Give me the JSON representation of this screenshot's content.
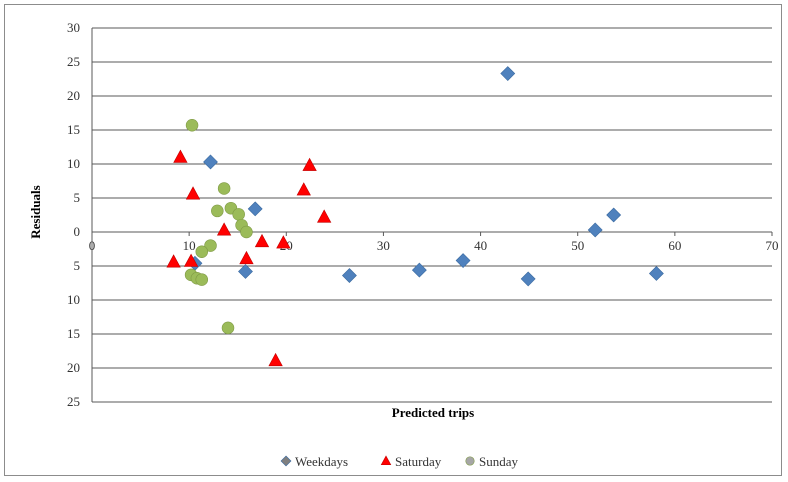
{
  "chart_data": {
    "type": "scatter",
    "title": "",
    "xlabel": "Predicted trips",
    "ylabel": "Residuals",
    "xlim": [
      0,
      70
    ],
    "ylim": [
      -25,
      30
    ],
    "x_ticks": [
      0,
      10,
      20,
      30,
      40,
      50,
      60,
      70
    ],
    "y_ticks": [
      30,
      25,
      20,
      15,
      10,
      5,
      0,
      -5,
      -10,
      -15,
      -20,
      -25
    ],
    "y_tick_labels": [
      "30",
      "25",
      "20",
      "15",
      "10",
      "5",
      "0",
      "5",
      "10",
      "15",
      "20",
      "25"
    ],
    "grid": "horizontal",
    "legend_position": "bottom",
    "series": [
      {
        "name": "Weekdays",
        "marker": "diamond",
        "color": "#4f81bd",
        "points": [
          [
            12.2,
            10.3
          ],
          [
            16.8,
            3.4
          ],
          [
            10.6,
            -4.6
          ],
          [
            15.8,
            -5.8
          ],
          [
            26.5,
            -6.4
          ],
          [
            33.7,
            -5.6
          ],
          [
            38.2,
            -4.2
          ],
          [
            42.8,
            23.3
          ],
          [
            44.9,
            -6.9
          ],
          [
            51.8,
            0.3
          ],
          [
            53.7,
            2.5
          ],
          [
            58.1,
            -6.1
          ]
        ]
      },
      {
        "name": "Saturday",
        "marker": "triangle",
        "color": "#ff0000",
        "points": [
          [
            9.1,
            11.0
          ],
          [
            10.4,
            5.6
          ],
          [
            8.4,
            -4.4
          ],
          [
            10.2,
            -4.3
          ],
          [
            13.6,
            0.3
          ],
          [
            15.9,
            -3.9
          ],
          [
            17.5,
            -1.4
          ],
          [
            19.7,
            -1.6
          ],
          [
            21.8,
            6.2
          ],
          [
            22.4,
            9.8
          ],
          [
            23.9,
            2.2
          ],
          [
            18.9,
            -18.9
          ]
        ]
      },
      {
        "name": "Sunday",
        "marker": "circle",
        "color": "#9bbb59",
        "points": [
          [
            10.3,
            15.7
          ],
          [
            13.6,
            6.4
          ],
          [
            12.9,
            3.1
          ],
          [
            14.3,
            3.5
          ],
          [
            15.1,
            2.6
          ],
          [
            15.4,
            1.0
          ],
          [
            15.9,
            0.0
          ],
          [
            12.2,
            -2.0
          ],
          [
            11.3,
            -2.9
          ],
          [
            10.2,
            -6.3
          ],
          [
            10.8,
            -6.8
          ],
          [
            11.3,
            -7.0
          ],
          [
            14.0,
            -14.1
          ]
        ]
      }
    ]
  },
  "colors": {
    "weekdays_legend_marker": "#7f7f7f",
    "saturday_legend_marker": "#ff0000",
    "sunday_legend_marker": "#a6a6a6",
    "gridline": "#595959",
    "axis": "#595959"
  }
}
